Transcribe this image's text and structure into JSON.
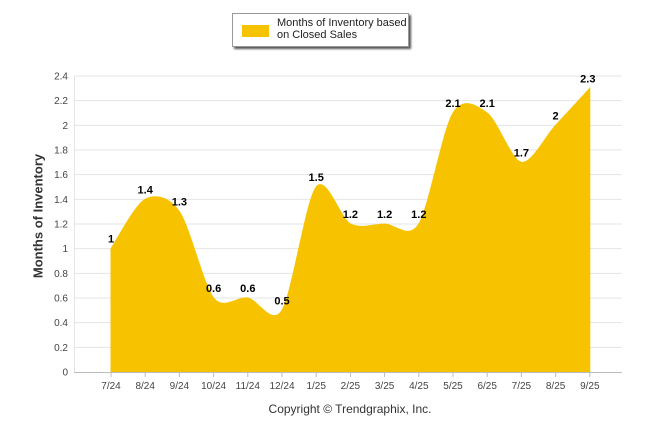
{
  "colors": {
    "fill": "#F7C300",
    "grid": "#e4e4e4",
    "axis": "#bbbbbb",
    "tick_text": "#444444"
  },
  "legend": {
    "label": "Months of Inventory based on Closed Sales"
  },
  "footer": {
    "copyright": "Copyright © Trendgraphix, Inc."
  },
  "chart_data": {
    "type": "area",
    "title": "",
    "xlabel": "",
    "ylabel": "Months of Inventory",
    "categories": [
      "7/24",
      "8/24",
      "9/24",
      "10/24",
      "11/24",
      "12/24",
      "1/25",
      "2/25",
      "3/25",
      "4/25",
      "5/25",
      "6/25",
      "7/25",
      "8/25",
      "9/25"
    ],
    "series": [
      {
        "name": "Months of Inventory based on Closed Sales",
        "values": [
          1,
          1.4,
          1.3,
          0.6,
          0.6,
          0.5,
          1.5,
          1.2,
          1.2,
          1.2,
          2.1,
          2.1,
          1.7,
          2,
          2.3
        ]
      }
    ],
    "ylim": [
      0,
      2.4
    ],
    "yticks": [
      "0",
      "0.2",
      "0.4",
      "0.6",
      "0.8",
      "1",
      "1.2",
      "1.4",
      "1.6",
      "1.8",
      "2",
      "2.2",
      "2.4"
    ],
    "grid": true,
    "legend_position": "top-center"
  }
}
